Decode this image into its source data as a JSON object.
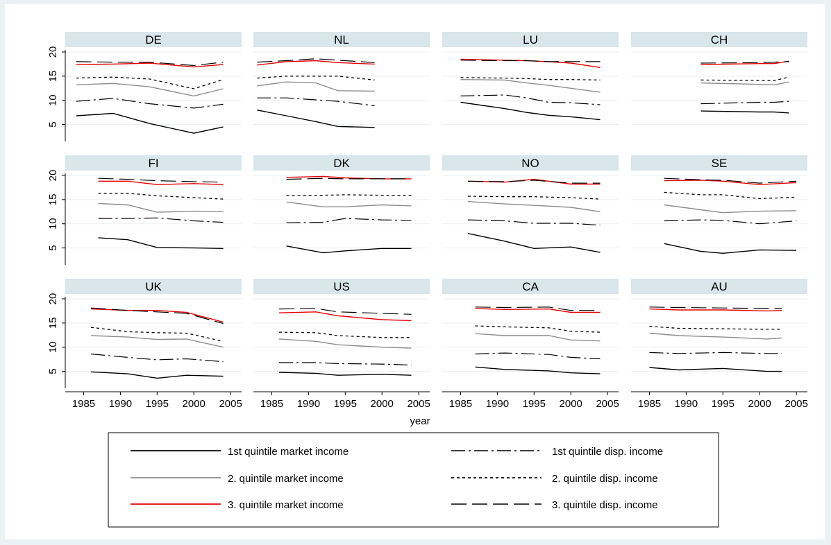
{
  "chart_data": {
    "type": "line",
    "xlabel": "year",
    "x_ticks": [
      1985,
      1990,
      1995,
      2000,
      2005
    ],
    "y_ticks": [
      5,
      10,
      15,
      20
    ],
    "xlim": [
      1982.5,
      2006.5
    ],
    "ylim": [
      1.5,
      21
    ],
    "grid": true,
    "legend_position": "bottom",
    "series_styles": [
      {
        "key": "q1_market",
        "name": "1st quintile market income",
        "color": "#000000",
        "dash": "none",
        "width": 1.4
      },
      {
        "key": "q1_disp",
        "name": "1st quintile disp. income",
        "color": "#000000",
        "dash": "20,5,3,5",
        "width": 1.2
      },
      {
        "key": "q2_market",
        "name": "2. quintile market income",
        "color": "#8c8c8c",
        "dash": "none",
        "width": 1.4
      },
      {
        "key": "q2_disp",
        "name": "2. quintile disp. income",
        "color": "#000000",
        "dash": "4,4",
        "width": 1.3
      },
      {
        "key": "q3_market",
        "name": "3. quintile market income",
        "color": "#e60000",
        "dash": "none",
        "width": 1.4
      },
      {
        "key": "q3_disp",
        "name": "3. quintile disp. income",
        "color": "#000000",
        "dash": "22,8",
        "width": 1.2
      }
    ],
    "panels": [
      {
        "name": "DE",
        "x": [
          1984,
          1989,
          1994,
          2000,
          2004
        ],
        "series": {
          "q1_market": [
            6.8,
            7.3,
            5.2,
            3.2,
            4.5
          ],
          "q1_disp": [
            9.8,
            10.4,
            9.3,
            8.4,
            9.2
          ],
          "q2_market": [
            13.2,
            13.5,
            12.8,
            10.9,
            12.4
          ],
          "q2_disp": [
            14.6,
            14.8,
            14.4,
            12.4,
            14.3
          ],
          "q3_market": [
            17.4,
            17.5,
            17.7,
            16.9,
            17.4
          ],
          "q3_disp": [
            18.0,
            17.9,
            17.9,
            17.2,
            17.9
          ]
        }
      },
      {
        "name": "NL",
        "x": [
          1983,
          1987,
          1991,
          1994,
          1999
        ],
        "series": {
          "q1_market": [
            8.0,
            6.8,
            5.6,
            4.6,
            4.4
          ],
          "q1_disp": [
            10.5,
            10.5,
            10.1,
            9.8,
            8.9
          ],
          "q2_market": [
            13.0,
            13.8,
            13.6,
            12.0,
            11.9
          ],
          "q2_disp": [
            14.6,
            15.0,
            15.0,
            15.0,
            14.2
          ],
          "q3_market": [
            17.3,
            18.0,
            18.2,
            17.8,
            17.5
          ],
          "q3_disp": [
            17.9,
            18.2,
            18.6,
            18.3,
            17.8
          ]
        }
      },
      {
        "name": "LU",
        "x": [
          1985,
          1991,
          1994,
          1997,
          2000,
          2004
        ],
        "series": {
          "q1_market": [
            9.6,
            8.3,
            7.5,
            6.9,
            6.6,
            6.0
          ],
          "q1_disp": [
            10.9,
            11.1,
            10.5,
            9.6,
            9.5,
            9.1
          ],
          "q2_market": [
            14.3,
            14.2,
            13.6,
            13.1,
            12.5,
            11.7
          ],
          "q2_disp": [
            14.7,
            14.6,
            14.5,
            14.3,
            14.3,
            14.2
          ],
          "q3_market": [
            18.5,
            18.3,
            18.2,
            18.0,
            17.7,
            16.8
          ],
          "q3_disp": [
            18.3,
            18.2,
            18.2,
            18.0,
            18.0,
            18.0
          ]
        }
      },
      {
        "name": "CH",
        "x": [
          1992,
          2000,
          2002,
          2004
        ],
        "series": {
          "q1_market": [
            7.8,
            7.6,
            7.6,
            7.4
          ],
          "q1_disp": [
            9.3,
            9.6,
            9.6,
            9.8
          ],
          "q2_market": [
            13.6,
            13.3,
            13.2,
            13.8
          ],
          "q2_disp": [
            14.2,
            14.1,
            14.1,
            14.8
          ],
          "q3_market": [
            17.4,
            17.6,
            17.6,
            18.1
          ],
          "q3_disp": [
            17.7,
            17.8,
            17.9,
            18.0
          ]
        }
      },
      {
        "name": "FI",
        "x": [
          1987,
          1991,
          1995,
          2000,
          2004
        ],
        "series": {
          "q1_market": [
            7.1,
            6.7,
            5.1,
            5.0,
            4.9
          ],
          "q1_disp": [
            11.1,
            11.1,
            11.2,
            10.6,
            10.3
          ],
          "q2_market": [
            14.2,
            13.9,
            12.4,
            12.6,
            12.5
          ],
          "q2_disp": [
            16.3,
            16.3,
            15.8,
            15.4,
            15.1
          ],
          "q3_market": [
            18.8,
            18.8,
            18.1,
            18.3,
            18.1
          ],
          "q3_disp": [
            19.4,
            19.2,
            18.9,
            18.7,
            18.6
          ]
        }
      },
      {
        "name": "DK",
        "x": [
          1987,
          1992,
          1995,
          2000,
          2004
        ],
        "series": {
          "q1_market": [
            5.4,
            4.0,
            4.4,
            4.9,
            4.9
          ],
          "q1_disp": [
            10.2,
            10.3,
            11.1,
            10.8,
            10.7
          ],
          "q2_market": [
            14.5,
            13.5,
            13.5,
            13.9,
            13.7
          ],
          "q2_disp": [
            15.8,
            15.9,
            16.0,
            15.9,
            15.9
          ],
          "q3_market": [
            19.6,
            19.8,
            19.5,
            19.3,
            19.3
          ],
          "q3_disp": [
            19.2,
            19.4,
            19.3,
            19.3,
            19.3
          ]
        }
      },
      {
        "name": "NO",
        "x": [
          1986,
          1991,
          1995,
          2000,
          2004
        ],
        "series": {
          "q1_market": [
            8.0,
            6.4,
            4.9,
            5.2,
            4.1
          ],
          "q1_disp": [
            10.8,
            10.6,
            10.1,
            10.1,
            9.7
          ],
          "q2_market": [
            14.6,
            14.1,
            13.8,
            13.4,
            12.5
          ],
          "q2_disp": [
            15.7,
            15.6,
            15.6,
            15.4,
            15.1
          ],
          "q3_market": [
            18.8,
            18.6,
            19.2,
            18.2,
            18.2
          ],
          "q3_disp": [
            18.8,
            18.7,
            19.0,
            18.4,
            18.4
          ]
        }
      },
      {
        "name": "SE",
        "x": [
          1987,
          1992,
          1995,
          2000,
          2005
        ],
        "series": {
          "q1_market": [
            5.9,
            4.3,
            3.9,
            4.6,
            4.5
          ],
          "q1_disp": [
            10.6,
            10.8,
            10.7,
            10.0,
            10.6
          ],
          "q2_market": [
            13.9,
            12.9,
            12.3,
            12.6,
            12.7
          ],
          "q2_disp": [
            16.5,
            16.0,
            16.0,
            15.2,
            15.5
          ],
          "q3_market": [
            18.9,
            19.0,
            18.8,
            18.1,
            18.5
          ],
          "q3_disp": [
            19.4,
            19.1,
            19.0,
            18.4,
            18.8
          ]
        }
      },
      {
        "name": "UK",
        "x": [
          1986,
          1991,
          1995,
          1999,
          2004
        ],
        "series": {
          "q1_market": [
            4.9,
            4.5,
            3.6,
            4.2,
            4.0
          ],
          "q1_disp": [
            8.6,
            7.9,
            7.4,
            7.6,
            7.0
          ],
          "q2_market": [
            12.4,
            12.1,
            11.6,
            11.7,
            10.0
          ],
          "q2_disp": [
            14.1,
            13.2,
            13.0,
            12.9,
            11.2
          ],
          "q3_market": [
            17.9,
            17.6,
            17.6,
            17.2,
            15.2
          ],
          "q3_disp": [
            18.1,
            17.6,
            17.3,
            17.0,
            14.9
          ]
        }
      },
      {
        "name": "US",
        "x": [
          1986,
          1991,
          1994,
          2000,
          2004
        ],
        "series": {
          "q1_market": [
            4.8,
            4.6,
            4.2,
            4.4,
            4.2
          ],
          "q1_disp": [
            6.8,
            6.8,
            6.6,
            6.5,
            6.3
          ],
          "q2_market": [
            11.7,
            11.2,
            10.5,
            10.0,
            9.8
          ],
          "q2_disp": [
            13.1,
            13.0,
            12.4,
            12.0,
            12.0
          ],
          "q3_market": [
            17.1,
            17.3,
            16.5,
            15.7,
            15.5
          ],
          "q3_disp": [
            17.9,
            18.0,
            17.3,
            17.0,
            16.8
          ]
        }
      },
      {
        "name": "CA",
        "x": [
          1987,
          1991,
          1997,
          2000,
          2004
        ],
        "series": {
          "q1_market": [
            5.9,
            5.4,
            5.1,
            4.7,
            4.5
          ],
          "q1_disp": [
            8.6,
            8.8,
            8.5,
            7.9,
            7.6
          ],
          "q2_market": [
            12.8,
            12.4,
            12.4,
            11.5,
            11.3
          ],
          "q2_disp": [
            14.4,
            14.2,
            14.0,
            13.3,
            13.1
          ],
          "q3_market": [
            18.0,
            17.8,
            17.9,
            17.2,
            17.2
          ],
          "q3_disp": [
            18.3,
            18.2,
            18.3,
            17.6,
            17.6
          ]
        }
      },
      {
        "name": "AU",
        "x": [
          1985,
          1989,
          1995,
          2001,
          2003
        ],
        "series": {
          "q1_market": [
            5.8,
            5.3,
            5.6,
            5.0,
            5.0
          ],
          "q1_disp": [
            8.9,
            8.7,
            8.9,
            8.7,
            8.7
          ],
          "q2_market": [
            12.9,
            12.4,
            12.1,
            11.7,
            11.9
          ],
          "q2_disp": [
            14.3,
            13.9,
            13.8,
            13.7,
            13.7
          ],
          "q3_market": [
            17.9,
            17.7,
            17.7,
            17.5,
            17.6
          ],
          "q3_disp": [
            18.3,
            18.2,
            18.1,
            18.0,
            18.0
          ]
        }
      }
    ]
  }
}
